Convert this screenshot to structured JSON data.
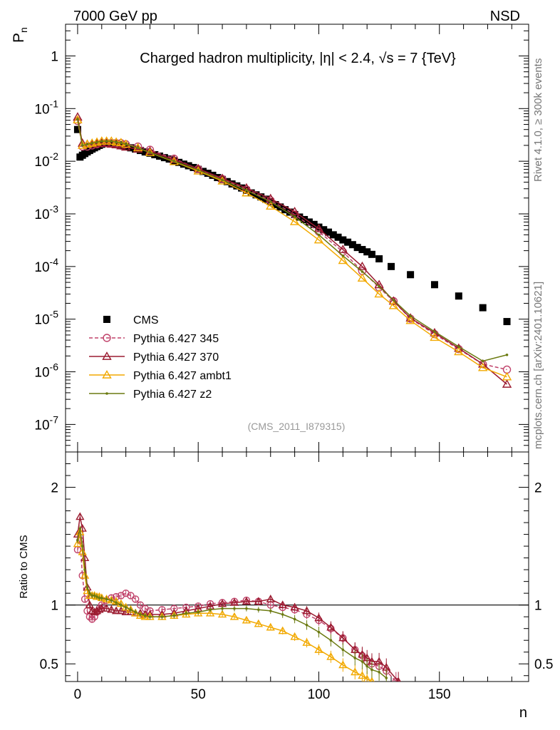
{
  "header": {
    "left": "7000 GeV pp",
    "right": "NSD"
  },
  "side_labels": {
    "rivet": "Rivet 4.1.0, ≥ 300k events",
    "mcplots": "mcplots.cern.ch [arXiv:2401.10621]"
  },
  "chart_data": [
    {
      "type": "scatter",
      "panel": "main",
      "title": "Charged hadron multiplicity, |η| < 2.4, √s = 7 {TeV}",
      "watermark": "(CMS_2011_I879315)",
      "xlabel": "n",
      "ylabel": "P_n",
      "yscale": "log",
      "xlim": [
        -5,
        187
      ],
      "ylim": [
        3e-08,
        4
      ],
      "xticks": [
        "0",
        "50",
        "100",
        "150"
      ],
      "yticks": [
        "10^-7",
        "10^-6",
        "10^-5",
        "10^-4",
        "10^-3",
        "10^-2",
        "10^-1",
        "1"
      ],
      "legend": [
        {
          "name": "CMS",
          "color": "#000000",
          "marker": "square"
        },
        {
          "name": "Pythia 6.427 345",
          "color": "#c0426a",
          "marker": "circle"
        },
        {
          "name": "Pythia 6.427 370",
          "color": "#9b1b30",
          "marker": "triangle"
        },
        {
          "name": "Pythia 6.427 ambt1",
          "color": "#f2a900",
          "marker": "triangle"
        },
        {
          "name": "Pythia 6.427 z2",
          "color": "#6b7a10",
          "marker": "dot"
        }
      ],
      "series": [
        {
          "name": "CMS",
          "color": "#000000",
          "x": [
            0,
            1,
            2,
            3,
            4,
            5,
            6,
            7,
            8,
            9,
            10,
            11,
            12,
            13,
            14,
            15,
            16,
            17,
            18,
            19,
            20,
            22,
            24,
            26,
            28,
            30,
            32,
            34,
            36,
            38,
            40,
            42,
            44,
            46,
            48,
            50,
            52,
            54,
            56,
            58,
            60,
            62,
            64,
            66,
            68,
            70,
            72,
            74,
            76,
            78,
            80,
            82,
            84,
            86,
            88,
            90,
            92,
            94,
            96,
            98,
            100,
            102,
            104,
            106,
            108,
            110,
            112,
            114,
            116,
            118,
            120,
            122,
            125,
            130,
            138,
            148,
            158,
            168,
            178
          ],
          "values": [
            0.04,
            0.012,
            0.013,
            0.014,
            0.015,
            0.016,
            0.017,
            0.018,
            0.019,
            0.02,
            0.021,
            0.022,
            0.022,
            0.022,
            0.022,
            0.022,
            0.021,
            0.0205,
            0.02,
            0.0195,
            0.019,
            0.018,
            0.017,
            0.016,
            0.015,
            0.0142,
            0.0133,
            0.0125,
            0.0117,
            0.011,
            0.0102,
            0.0095,
            0.0088,
            0.0082,
            0.0076,
            0.007,
            0.0064,
            0.0059,
            0.0054,
            0.0049,
            0.0045,
            0.0041,
            0.0037,
            0.0034,
            0.0031,
            0.0028,
            0.0025,
            0.0023,
            0.0021,
            0.0019,
            0.0017,
            0.0015,
            0.00135,
            0.0012,
            0.00108,
            0.00097,
            0.00087,
            0.00078,
            0.0007,
            0.00063,
            0.00056,
            0.0005,
            0.00045,
            0.0004,
            0.00036,
            0.00032,
            0.00029,
            0.00026,
            0.00023,
            0.00021,
            0.00019,
            0.00017,
            0.00014,
            0.0001,
            7e-05,
            4.52e-05,
            2.75e-05,
            1.65e-05,
            9e-06
          ]
        },
        {
          "name": "Pythia 6.427 345",
          "color": "#c0426a",
          "x": [
            0,
            2,
            4,
            6,
            8,
            10,
            12,
            14,
            16,
            18,
            20,
            25,
            30,
            40,
            50,
            60,
            70,
            80,
            90,
            100,
            110,
            118,
            125,
            131,
            138,
            148,
            158,
            168,
            178
          ],
          "values": [
            0.058,
            0.019,
            0.019,
            0.02,
            0.021,
            0.022,
            0.022,
            0.022,
            0.022,
            0.022,
            0.021,
            0.019,
            0.0165,
            0.0112,
            0.0071,
            0.0046,
            0.0029,
            0.0018,
            0.00097,
            0.00046,
            0.00019,
            8.2e-05,
            4e-05,
            2.2e-05,
            1.02e-05,
            5.2e-06,
            2.7e-06,
            1.4e-06,
            1.1e-06
          ]
        },
        {
          "name": "Pythia 6.427 370",
          "color": "#9b1b30",
          "x": [
            0,
            2,
            4,
            6,
            8,
            10,
            12,
            14,
            16,
            18,
            20,
            25,
            30,
            40,
            50,
            60,
            70,
            80,
            90,
            100,
            110,
            118,
            125,
            131,
            138,
            148,
            158,
            168,
            178
          ],
          "values": [
            0.069,
            0.022,
            0.021,
            0.021,
            0.0215,
            0.022,
            0.022,
            0.021,
            0.0205,
            0.0195,
            0.0185,
            0.017,
            0.0155,
            0.0107,
            0.0072,
            0.0047,
            0.0031,
            0.00195,
            0.0011,
            0.00052,
            0.00021,
            0.0001,
            4.5e-05,
            2.2e-05,
            1.05e-05,
            5.5e-06,
            2.8e-06,
            1.4e-06,
            5.8e-07
          ]
        },
        {
          "name": "Pythia 6.427 ambt1",
          "color": "#f2a900",
          "x": [
            0,
            2,
            4,
            6,
            8,
            10,
            12,
            14,
            16,
            18,
            20,
            25,
            30,
            40,
            50,
            60,
            70,
            80,
            90,
            100,
            110,
            118,
            125,
            131,
            138,
            148,
            158,
            168,
            178
          ],
          "values": [
            0.061,
            0.02,
            0.021,
            0.022,
            0.023,
            0.024,
            0.024,
            0.024,
            0.023,
            0.0225,
            0.021,
            0.018,
            0.0145,
            0.0098,
            0.0065,
            0.0042,
            0.0025,
            0.0014,
            0.00071,
            0.00032,
            0.00013,
            6e-05,
            3e-05,
            1.8e-05,
            9.4e-06,
            4.5e-06,
            2.4e-06,
            1.2e-06,
            8e-07
          ]
        },
        {
          "name": "Pythia 6.427 z2",
          "color": "#6b7a10",
          "x": [
            0,
            2,
            4,
            6,
            8,
            10,
            12,
            14,
            16,
            18,
            20,
            25,
            30,
            40,
            50,
            60,
            70,
            80,
            90,
            100,
            110,
            118,
            125,
            131,
            138,
            148,
            158,
            168,
            178
          ],
          "values": [
            0.063,
            0.02,
            0.021,
            0.022,
            0.023,
            0.024,
            0.024,
            0.024,
            0.023,
            0.0222,
            0.021,
            0.018,
            0.0146,
            0.01,
            0.0068,
            0.0044,
            0.0028,
            0.0017,
            0.00088,
            0.0004,
            0.00016,
            8e-05,
            4.2e-05,
            2.3e-05,
            1.15e-05,
            5.8e-06,
            3e-06,
            1.6e-06,
            2.1e-06
          ]
        }
      ]
    },
    {
      "type": "scatter",
      "panel": "ratio",
      "ylabel": "Ratio to CMS",
      "xlabel": "n",
      "xlim": [
        -5,
        187
      ],
      "ylim": [
        0.35,
        2.3
      ],
      "yticks": [
        "0.5",
        "1",
        "2"
      ],
      "reference_line": 1,
      "series": [
        {
          "name": "Pythia 6.427 345",
          "color": "#c0426a",
          "x": [
            0,
            1,
            2,
            3,
            4,
            5,
            6,
            7,
            8,
            9,
            10,
            12,
            14,
            16,
            18,
            20,
            22,
            24,
            26,
            28,
            30,
            35,
            40,
            45,
            50,
            55,
            60,
            65,
            70,
            75,
            80,
            85,
            90,
            95,
            100,
            105,
            110,
            115,
            118,
            120,
            122,
            125,
            128,
            132
          ],
          "values": [
            1.47,
            1.55,
            1.25,
            1.05,
            0.95,
            0.9,
            0.88,
            0.9,
            0.94,
            0.97,
            1.0,
            1.04,
            1.06,
            1.07,
            1.08,
            1.1,
            1.08,
            1.05,
            1.0,
            0.97,
            0.95,
            0.96,
            0.97,
            0.98,
            0.99,
            1.01,
            1.02,
            1.03,
            1.04,
            1.03,
            1.0,
            0.98,
            0.96,
            0.92,
            0.87,
            0.8,
            0.72,
            0.62,
            0.57,
            0.52,
            0.5,
            0.48,
            0.44,
            0.35
          ]
        },
        {
          "name": "Pythia 6.427 370",
          "color": "#9b1b30",
          "x": [
            0,
            1,
            2,
            3,
            4,
            5,
            6,
            7,
            8,
            9,
            10,
            12,
            14,
            16,
            18,
            20,
            22,
            24,
            26,
            28,
            30,
            35,
            40,
            45,
            50,
            55,
            60,
            65,
            70,
            75,
            80,
            85,
            90,
            95,
            100,
            105,
            110,
            115,
            118,
            120,
            122,
            125,
            128,
            133
          ],
          "values": [
            1.6,
            1.75,
            1.65,
            1.4,
            1.15,
            1.0,
            0.95,
            0.94,
            0.95,
            0.96,
            0.97,
            0.97,
            0.96,
            0.95,
            0.95,
            0.94,
            0.94,
            0.93,
            0.93,
            0.92,
            0.92,
            0.92,
            0.93,
            0.95,
            0.97,
            0.99,
            1.01,
            1.02,
            1.03,
            1.03,
            1.05,
            1.0,
            0.98,
            0.95,
            0.89,
            0.81,
            0.72,
            0.62,
            0.58,
            0.55,
            0.52,
            0.52,
            0.47,
            0.35
          ]
        },
        {
          "name": "Pythia 6.427 ambt1",
          "color": "#f2a900",
          "x": [
            0,
            1,
            2,
            3,
            4,
            5,
            6,
            7,
            8,
            9,
            10,
            12,
            14,
            16,
            18,
            20,
            22,
            24,
            26,
            28,
            30,
            35,
            40,
            45,
            50,
            55,
            60,
            65,
            70,
            75,
            80,
            85,
            90,
            95,
            100,
            105,
            110,
            115,
            118,
            120,
            122
          ],
          "values": [
            1.52,
            1.62,
            1.45,
            1.25,
            1.12,
            1.08,
            1.08,
            1.08,
            1.07,
            1.07,
            1.06,
            1.05,
            1.04,
            1.03,
            1.01,
            0.98,
            0.96,
            0.93,
            0.91,
            0.9,
            0.9,
            0.9,
            0.91,
            0.92,
            0.93,
            0.93,
            0.92,
            0.9,
            0.87,
            0.84,
            0.81,
            0.78,
            0.73,
            0.68,
            0.62,
            0.56,
            0.49,
            0.43,
            0.4,
            0.37,
            0.35
          ]
        },
        {
          "name": "Pythia 6.427 z2",
          "color": "#6b7a10",
          "x": [
            0,
            1,
            2,
            3,
            4,
            5,
            6,
            7,
            8,
            9,
            10,
            12,
            14,
            16,
            18,
            20,
            22,
            24,
            26,
            28,
            30,
            35,
            40,
            45,
            50,
            55,
            60,
            65,
            70,
            75,
            80,
            85,
            90,
            95,
            100,
            105,
            110,
            115,
            118,
            120,
            122,
            125,
            128
          ],
          "values": [
            1.55,
            1.65,
            1.5,
            1.3,
            1.15,
            1.1,
            1.08,
            1.08,
            1.07,
            1.06,
            1.06,
            1.05,
            1.04,
            1.02,
            1.0,
            0.98,
            0.96,
            0.94,
            0.92,
            0.91,
            0.9,
            0.9,
            0.91,
            0.93,
            0.94,
            0.96,
            0.97,
            0.97,
            0.97,
            0.96,
            0.95,
            0.92,
            0.88,
            0.83,
            0.77,
            0.7,
            0.62,
            0.55,
            0.52,
            0.48,
            0.45,
            0.43,
            0.38
          ]
        }
      ]
    }
  ]
}
